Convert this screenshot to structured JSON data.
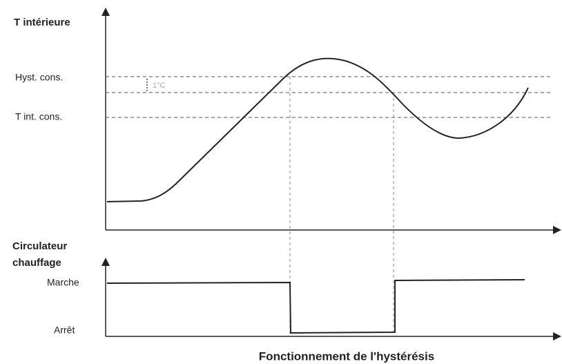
{
  "axes": {
    "top_y_label": "T intérieure",
    "bottom_y_label": [
      "Circulateur",
      "chauffage"
    ]
  },
  "levels": {
    "hysteresis": "Hyst. cons.",
    "setpoint": "T int. cons.",
    "gap": "1°C"
  },
  "states": {
    "on": "Marche",
    "off": "Arrêt"
  },
  "caption": "Fonctionnement de l'hystérésis"
}
